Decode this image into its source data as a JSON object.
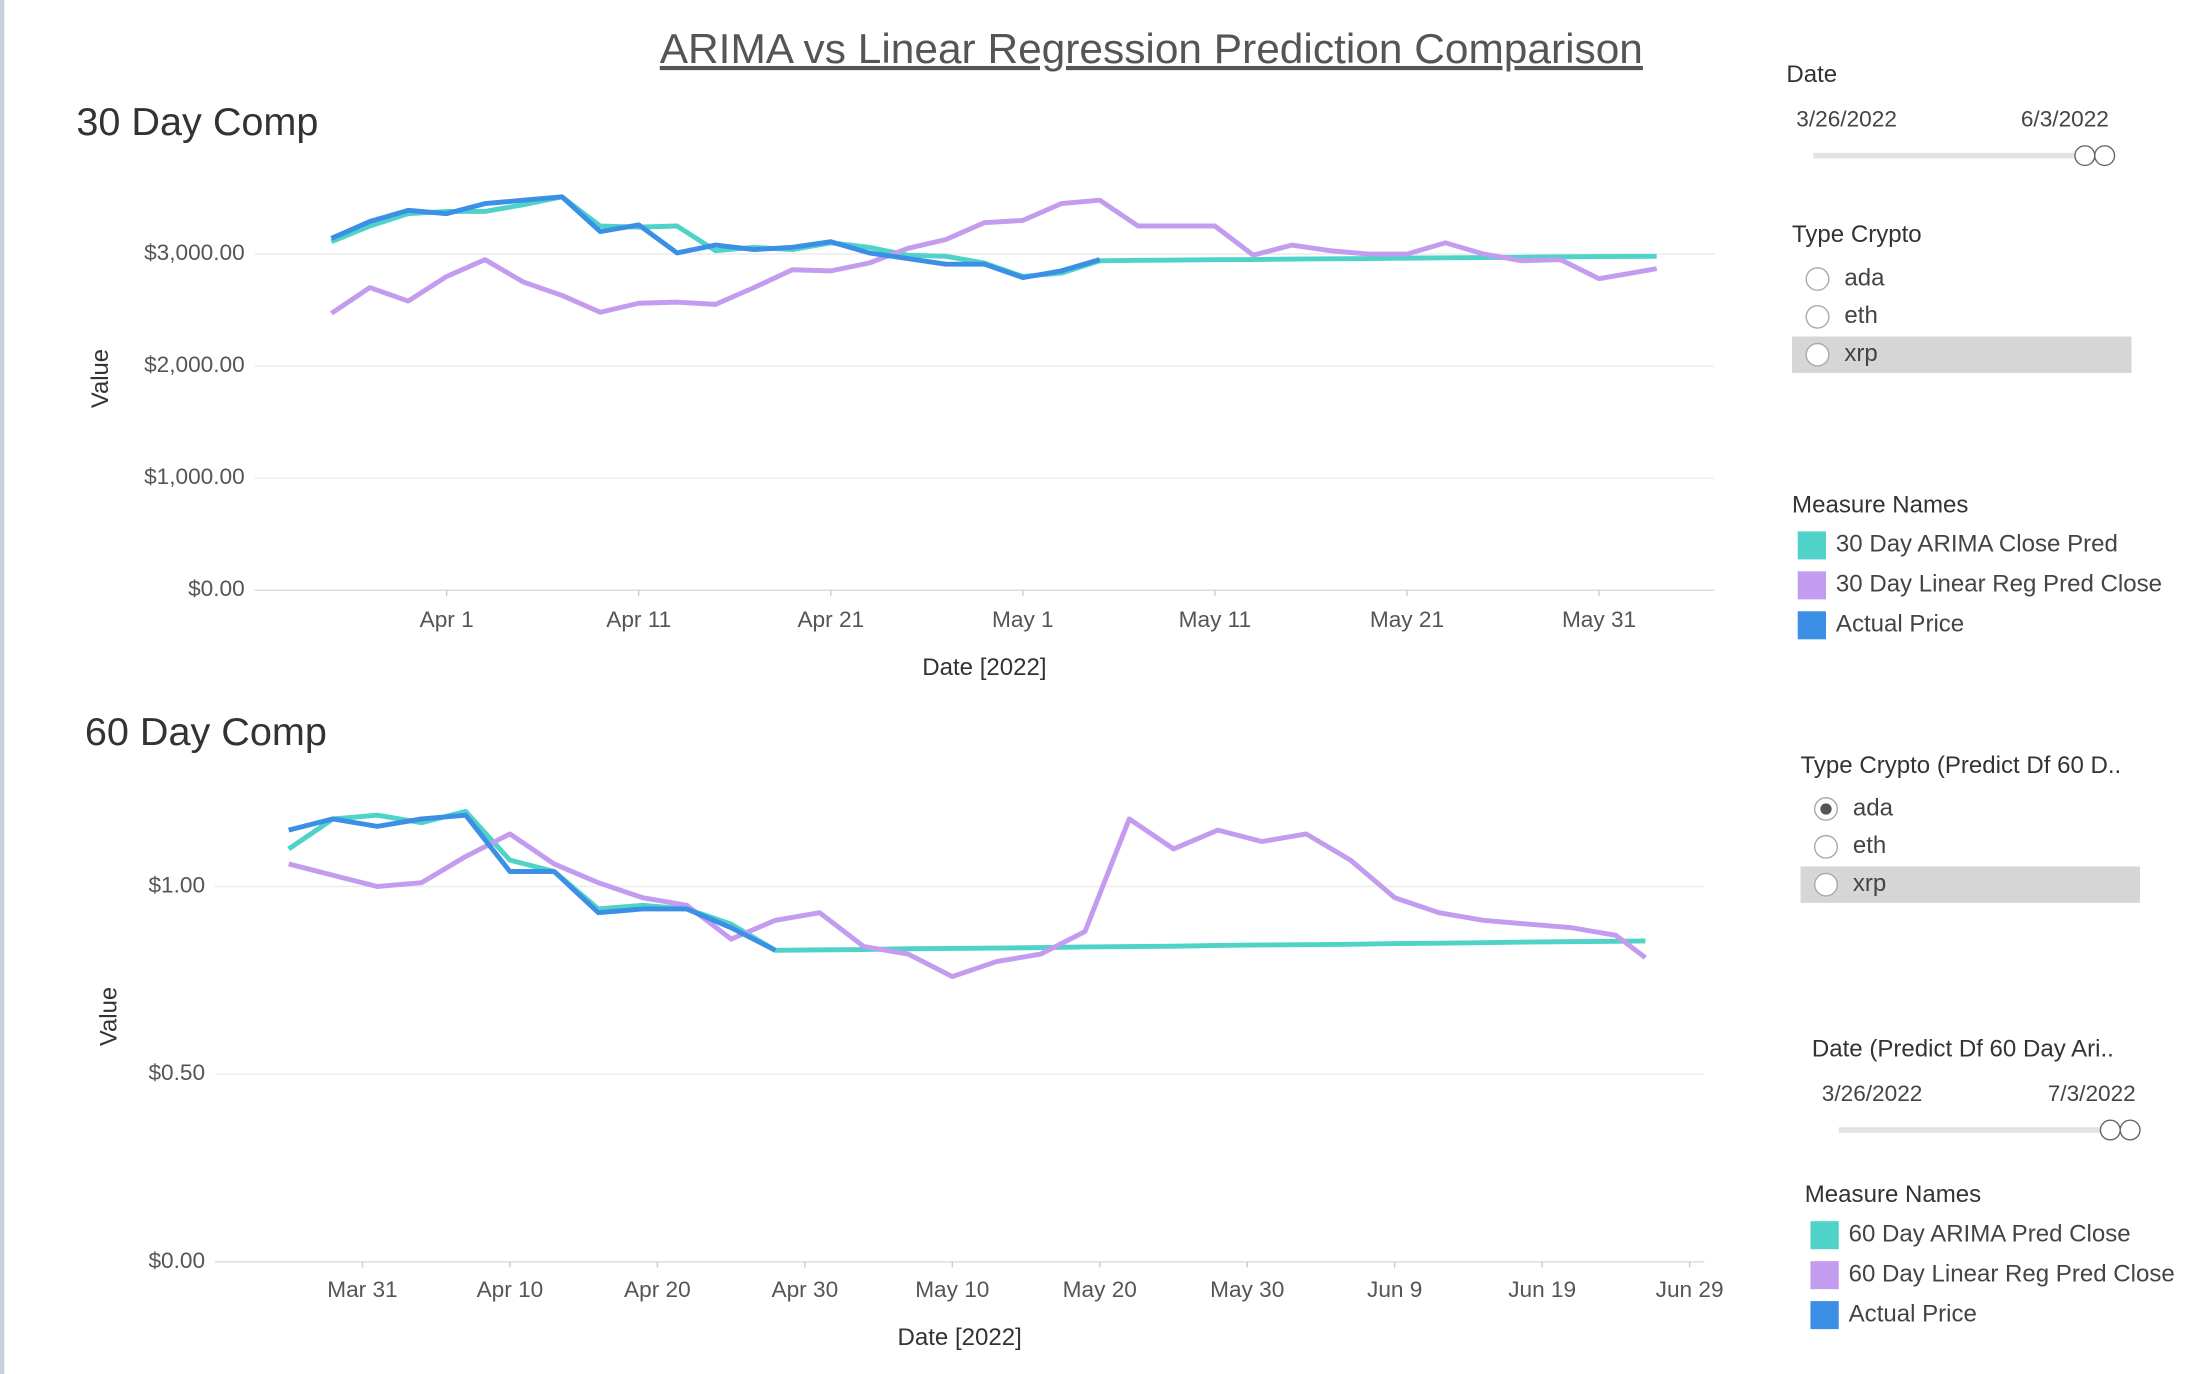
{
  "title": "ARIMA vs Linear Regression Prediction Comparison",
  "chart_data": [
    {
      "type": "line",
      "title": "30 Day Comp",
      "ylabel": "Value",
      "xlabel": "Date [2022]",
      "legend_title": "Measure Names",
      "grid": true,
      "x": [
        "2022-03-26",
        "2022-03-28",
        "2022-03-30",
        "2022-04-01",
        "2022-04-03",
        "2022-04-05",
        "2022-04-07",
        "2022-04-09",
        "2022-04-11",
        "2022-04-13",
        "2022-04-15",
        "2022-04-17",
        "2022-04-19",
        "2022-04-21",
        "2022-04-23",
        "2022-04-25",
        "2022-04-27",
        "2022-04-29",
        "2022-05-01",
        "2022-05-03",
        "2022-05-05",
        "2022-05-07",
        "2022-05-09",
        "2022-05-11",
        "2022-05-13",
        "2022-05-15",
        "2022-05-17",
        "2022-05-19",
        "2022-05-21",
        "2022-05-23",
        "2022-05-25",
        "2022-05-27",
        "2022-05-29",
        "2022-05-31",
        "2022-06-03"
      ],
      "xlim": [
        "2022-03-22",
        "2022-06-06"
      ],
      "xticks": [
        {
          "value": "2022-04-01",
          "label": "Apr 1"
        },
        {
          "value": "2022-04-11",
          "label": "Apr 11"
        },
        {
          "value": "2022-04-21",
          "label": "Apr 21"
        },
        {
          "value": "2022-05-01",
          "label": "May 1"
        },
        {
          "value": "2022-05-11",
          "label": "May 11"
        },
        {
          "value": "2022-05-21",
          "label": "May 21"
        },
        {
          "value": "2022-05-31",
          "label": "May 31"
        }
      ],
      "ylim": [
        0,
        3640
      ],
      "yticks": [
        {
          "value": 3000,
          "label": "$3,000.00"
        },
        {
          "value": 2000,
          "label": "$2,000.00"
        },
        {
          "value": 1000,
          "label": "$1,000.00"
        },
        {
          "value": 0,
          "label": "$0.00"
        }
      ],
      "series": [
        {
          "name": "30 Day ARIMA Close Pred",
          "color": "#4fd3c8",
          "values": [
            3110,
            3250,
            3360,
            3380,
            3380,
            3440,
            3510,
            3250,
            3240,
            3250,
            3030,
            3060,
            3040,
            3100,
            3060,
            2990,
            2980,
            2920,
            2800,
            2830,
            2940,
            2943,
            2946,
            2949,
            2951,
            2954,
            2957,
            2960,
            2963,
            2966,
            2968,
            2971,
            2974,
            2977,
            2980
          ]
        },
        {
          "name": "30 Day Linear Reg Pred Close",
          "color": "#c39bef",
          "values": [
            2470,
            2700,
            2580,
            2800,
            2950,
            2750,
            2630,
            2480,
            2560,
            2570,
            2550,
            2700,
            2860,
            2850,
            2920,
            3050,
            3130,
            3280,
            3300,
            3450,
            3480,
            3250,
            3250,
            3250,
            2990,
            3080,
            3030,
            3000,
            3000,
            3100,
            3000,
            2940,
            2950,
            2780,
            2870
          ]
        },
        {
          "name": "Actual Price",
          "color": "#3b8fe4",
          "values": [
            3140,
            3290,
            3390,
            3360,
            3450,
            3480,
            3510,
            3200,
            3260,
            3010,
            3080,
            3040,
            3060,
            3110,
            3010,
            2960,
            2910,
            2910,
            2790,
            2850,
            2950,
            null,
            null,
            null,
            null,
            null,
            null,
            null,
            null,
            null,
            null,
            null,
            null,
            null,
            null
          ]
        }
      ]
    },
    {
      "type": "line",
      "title": "60 Day Comp",
      "ylabel": "Value",
      "xlabel": "Date [2022]",
      "legend_title": "Measure Names",
      "grid": true,
      "x": [
        "2022-03-26",
        "2022-03-29",
        "2022-04-01",
        "2022-04-04",
        "2022-04-07",
        "2022-04-10",
        "2022-04-13",
        "2022-04-16",
        "2022-04-19",
        "2022-04-22",
        "2022-04-25",
        "2022-04-28",
        "2022-05-01",
        "2022-05-04",
        "2022-05-07",
        "2022-05-10",
        "2022-05-13",
        "2022-05-16",
        "2022-05-19",
        "2022-05-22",
        "2022-05-25",
        "2022-05-28",
        "2022-05-31",
        "2022-06-03",
        "2022-06-06",
        "2022-06-09",
        "2022-06-12",
        "2022-06-15",
        "2022-06-18",
        "2022-06-21",
        "2022-06-24",
        "2022-06-26"
      ],
      "xlim": [
        "2022-03-21",
        "2022-06-30"
      ],
      "xticks": [
        {
          "value": "2022-03-31",
          "label": "Mar 31"
        },
        {
          "value": "2022-04-10",
          "label": "Apr 10"
        },
        {
          "value": "2022-04-20",
          "label": "Apr 20"
        },
        {
          "value": "2022-04-30",
          "label": "Apr 30"
        },
        {
          "value": "2022-05-10",
          "label": "May 10"
        },
        {
          "value": "2022-05-20",
          "label": "May 20"
        },
        {
          "value": "2022-05-30",
          "label": "May 30"
        },
        {
          "value": "2022-06-09",
          "label": "Jun 9"
        },
        {
          "value": "2022-06-19",
          "label": "Jun 19"
        },
        {
          "value": "2022-06-29",
          "label": "Jun 29"
        }
      ],
      "ylim": [
        0,
        1.27
      ],
      "yticks": [
        {
          "value": 1,
          "label": "$1.00"
        },
        {
          "value": 0.5,
          "label": "$0.50"
        },
        {
          "value": 0,
          "label": "$0.00"
        }
      ],
      "series": [
        {
          "name": "60 Day ARIMA Pred Close",
          "color": "#4fd3c8",
          "values": [
            1.1,
            1.18,
            1.19,
            1.17,
            1.2,
            1.07,
            1.04,
            0.94,
            0.95,
            0.94,
            0.9,
            0.83,
            0.831,
            0.832,
            0.834,
            0.835,
            0.836,
            0.837,
            0.839,
            0.84,
            0.841,
            0.843,
            0.844,
            0.845,
            0.846,
            0.848,
            0.849,
            0.85,
            0.852,
            0.853,
            0.854,
            0.855
          ]
        },
        {
          "name": "60 Day Linear Reg Pred Close",
          "color": "#c39bef",
          "values": [
            1.06,
            1.03,
            1.0,
            1.01,
            1.08,
            1.14,
            1.06,
            1.01,
            0.97,
            0.95,
            0.86,
            0.91,
            0.93,
            0.84,
            0.82,
            0.76,
            0.8,
            0.82,
            0.88,
            1.18,
            1.1,
            1.15,
            1.12,
            1.14,
            1.07,
            0.97,
            0.93,
            0.91,
            0.9,
            0.89,
            0.87,
            0.81
          ]
        },
        {
          "name": "Actual Price",
          "color": "#3b8fe4",
          "values": [
            1.15,
            1.18,
            1.16,
            1.18,
            1.19,
            1.04,
            1.04,
            0.93,
            0.94,
            0.94,
            0.89,
            0.83,
            null,
            null,
            null,
            null,
            null,
            null,
            null,
            null,
            null,
            null,
            null,
            null,
            null,
            null,
            null,
            null,
            null,
            null,
            null,
            null
          ]
        }
      ]
    }
  ],
  "controls": [
    {
      "title": "Date",
      "start": "3/26/2022",
      "end": "6/3/2022"
    },
    {
      "title": "Type Crypto",
      "options": [
        "ada",
        "eth",
        "xrp"
      ]
    },
    {
      "title": "Type Crypto (Predict Df 60 D..",
      "options": [
        "ada",
        "eth",
        "xrp"
      ],
      "selected": 0
    },
    {
      "title": "Date (Predict Df 60 Day Ari..",
      "start": "3/26/2022",
      "end": "7/3/2022"
    }
  ]
}
